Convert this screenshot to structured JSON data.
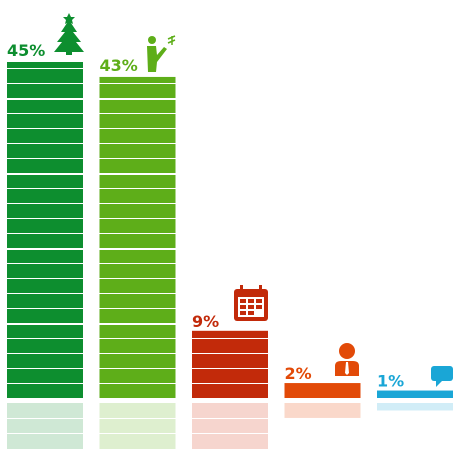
{
  "chart_data": {
    "type": "bar",
    "categories": [
      "tree",
      "person",
      "calendar",
      "manager",
      "chat"
    ],
    "values": [
      45,
      43,
      9,
      2,
      1
    ],
    "labels": [
      "45%",
      "43%",
      "9%",
      "2%",
      "1%"
    ],
    "icons": [
      "christmas-tree-icon",
      "person-pointing-icon",
      "calendar-icon",
      "person-icon",
      "speech-bubble-icon"
    ],
    "colors": [
      "#0d8e2f",
      "#5eae19",
      "#c22a0a",
      "#e24a08",
      "#1aa6d6"
    ],
    "reflection_colors": [
      "#cfe8d5",
      "#deefcf",
      "#f6d5ce",
      "#fad8ca",
      "#d1edf7"
    ],
    "ylim": [
      0,
      45
    ],
    "grid": false,
    "legend": "none"
  }
}
